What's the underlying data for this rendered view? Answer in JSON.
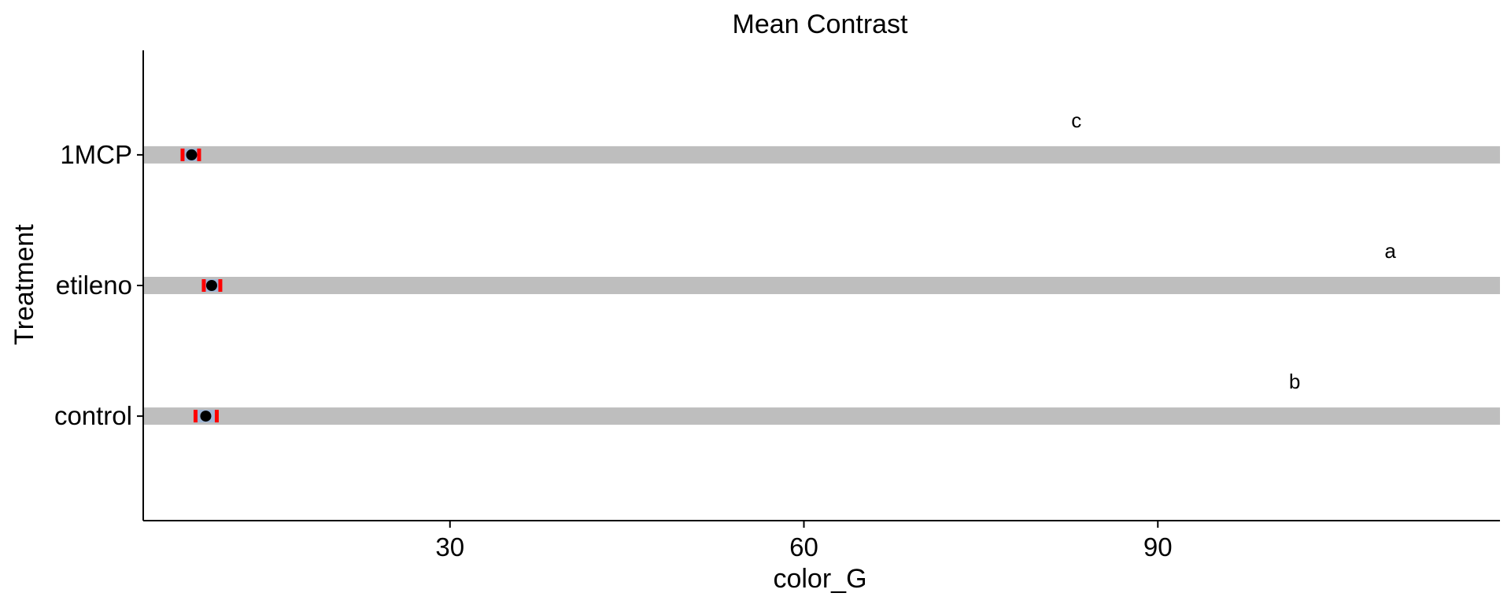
{
  "chart_data": {
    "type": "bar",
    "orientation": "horizontal",
    "title": "Mean Contrast",
    "xlabel": "color_G",
    "ylabel": "Treatment",
    "categories": [
      "control",
      "etileno",
      "1MCP"
    ],
    "values": [
      120,
      120,
      120
    ],
    "bar_color": "#bebebe",
    "points": [
      {
        "category": "control",
        "mean": 9.3,
        "ci_low": 8.4,
        "ci_high": 10.2
      },
      {
        "category": "etileno",
        "mean": 9.8,
        "ci_low": 9.1,
        "ci_high": 10.5
      },
      {
        "category": "1MCP",
        "mean": 8.1,
        "ci_low": 7.3,
        "ci_high": 8.7
      }
    ],
    "point_color": "#000000",
    "ci_color": "#ff0000",
    "ci_inner_color": "#9fb6d6",
    "annotations": [
      {
        "category": "1MCP",
        "text": "c",
        "x": 83.1
      },
      {
        "category": "etileno",
        "text": "a",
        "x": 109.7
      },
      {
        "category": "control",
        "text": "b",
        "x": 101.6
      }
    ],
    "xticks": [
      30,
      60,
      90
    ],
    "xtick_labels": [
      "30",
      "60",
      "90"
    ],
    "xlim": [
      4.0,
      119.0
    ],
    "grid": false,
    "legend": "none"
  }
}
